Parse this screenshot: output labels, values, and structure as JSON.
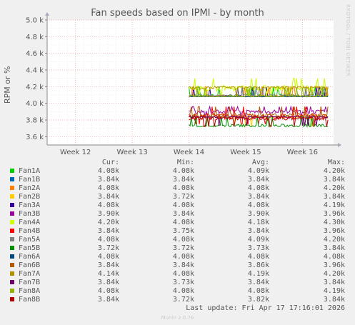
{
  "chart_data": {
    "type": "line",
    "title": "Fan speeds based on IPMI - by month",
    "ylabel": "RPM or %",
    "y_ticks": [
      "3.6 k",
      "3.8 k",
      "4.0 k",
      "4.2 k",
      "4.4 k",
      "4.6 k",
      "4.8 k",
      "5.0 k"
    ],
    "y_tick_values": [
      3600,
      3800,
      4000,
      4200,
      4400,
      4600,
      4800,
      5000
    ],
    "ylim": [
      3500,
      5000
    ],
    "x_ticks": [
      "Week 12",
      "Week 13",
      "Week 14",
      "Week 15",
      "Week 16"
    ],
    "x_tick_positions": [
      12,
      13,
      14,
      15,
      16
    ],
    "xlim": [
      11.5,
      16.55
    ],
    "data_start": 14.0,
    "data_end": 16.45,
    "grid": true,
    "legend_placement": "bottom",
    "columns": {
      "cur": "Cur:",
      "min": "Min:",
      "avg": "Avg:",
      "max": "Max:"
    },
    "series": [
      {
        "name": "Fan1A",
        "color": "#00cc00",
        "cur": "4.08k",
        "min": "4.08k",
        "avg": "4.09k",
        "max": "4.20k",
        "avg_value": 4090,
        "min_value": 4080,
        "max_value": 4200
      },
      {
        "name": "Fan1B",
        "color": "#0066b3",
        "cur": "3.84k",
        "min": "3.84k",
        "avg": "3.84k",
        "max": "3.84k",
        "avg_value": 3840,
        "min_value": 3840,
        "max_value": 3840
      },
      {
        "name": "Fan2A",
        "color": "#ff8000",
        "cur": "4.08k",
        "min": "4.08k",
        "avg": "4.08k",
        "max": "4.20k",
        "avg_value": 4080,
        "min_value": 4080,
        "max_value": 4200
      },
      {
        "name": "Fan2B",
        "color": "#ffcc00",
        "cur": "3.84k",
        "min": "3.72k",
        "avg": "3.84k",
        "max": "3.84k",
        "avg_value": 3840,
        "min_value": 3720,
        "max_value": 3840
      },
      {
        "name": "Fan3A",
        "color": "#330099",
        "cur": "4.08k",
        "min": "4.08k",
        "avg": "4.08k",
        "max": "4.19k",
        "avg_value": 4080,
        "min_value": 4080,
        "max_value": 4190
      },
      {
        "name": "Fan3B",
        "color": "#990099",
        "cur": "3.90k",
        "min": "3.84k",
        "avg": "3.90k",
        "max": "3.96k",
        "avg_value": 3900,
        "min_value": 3840,
        "max_value": 3960
      },
      {
        "name": "Fan4A",
        "color": "#ccff00",
        "cur": "4.20k",
        "min": "4.08k",
        "avg": "4.18k",
        "max": "4.30k",
        "avg_value": 4180,
        "min_value": 4080,
        "max_value": 4300
      },
      {
        "name": "Fan4B",
        "color": "#ff0000",
        "cur": "3.84k",
        "min": "3.75k",
        "avg": "3.84k",
        "max": "3.96k",
        "avg_value": 3840,
        "min_value": 3750,
        "max_value": 3960
      },
      {
        "name": "Fan5A",
        "color": "#808080",
        "cur": "4.08k",
        "min": "4.08k",
        "avg": "4.09k",
        "max": "4.20k",
        "avg_value": 4090,
        "min_value": 4080,
        "max_value": 4200
      },
      {
        "name": "Fan5B",
        "color": "#008f00",
        "cur": "3.72k",
        "min": "3.72k",
        "avg": "3.73k",
        "max": "3.84k",
        "avg_value": 3730,
        "min_value": 3720,
        "max_value": 3840
      },
      {
        "name": "Fan6A",
        "color": "#00487d",
        "cur": "4.08k",
        "min": "4.08k",
        "avg": "4.08k",
        "max": "4.08k",
        "avg_value": 4080,
        "min_value": 4080,
        "max_value": 4080
      },
      {
        "name": "Fan6B",
        "color": "#b35a00",
        "cur": "3.84k",
        "min": "3.84k",
        "avg": "3.86k",
        "max": "3.96k",
        "avg_value": 3860,
        "min_value": 3840,
        "max_value": 3960
      },
      {
        "name": "Fan7A",
        "color": "#b38f00",
        "cur": "4.14k",
        "min": "4.08k",
        "avg": "4.19k",
        "max": "4.20k",
        "avg_value": 4190,
        "min_value": 4080,
        "max_value": 4200
      },
      {
        "name": "Fan7B",
        "color": "#6b006b",
        "cur": "3.84k",
        "min": "3.73k",
        "avg": "3.84k",
        "max": "3.84k",
        "avg_value": 3840,
        "min_value": 3730,
        "max_value": 3840
      },
      {
        "name": "Fan8A",
        "color": "#8fb300",
        "cur": "4.08k",
        "min": "4.08k",
        "avg": "4.08k",
        "max": "4.19k",
        "avg_value": 4080,
        "min_value": 4080,
        "max_value": 4190
      },
      {
        "name": "Fan8B",
        "color": "#b30000",
        "cur": "3.84k",
        "min": "3.72k",
        "avg": "3.82k",
        "max": "3.84k",
        "avg_value": 3820,
        "min_value": 3720,
        "max_value": 3840
      }
    ]
  },
  "side_label": "RRDTOOL / TOBI OETIKER",
  "last_update": "Last update:  Fri Apr 17 17:16:01 2026",
  "footer": "Munin 2.0.76"
}
